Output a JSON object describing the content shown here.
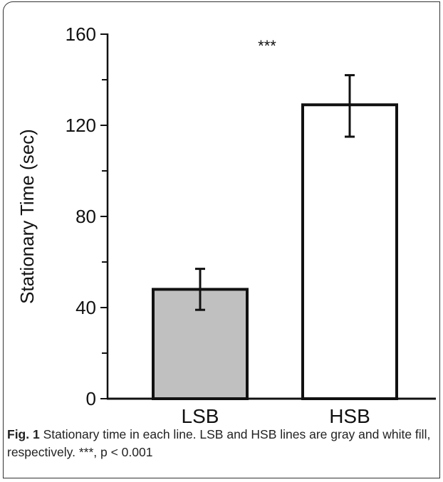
{
  "chart_data": {
    "type": "bar",
    "title": "",
    "xlabel": "",
    "ylabel": "Stationary Time (sec)",
    "ylim": [
      0,
      160
    ],
    "yticks_labeled": [
      0,
      40,
      80,
      120,
      160
    ],
    "yticks_minor": [
      20,
      60,
      100,
      140
    ],
    "categories": [
      "LSB",
      "HSB"
    ],
    "values": [
      48,
      129
    ],
    "error_lower": [
      39,
      115
    ],
    "error_upper": [
      57,
      142
    ],
    "bar_fills": [
      "#c0c0c0",
      "#ffffff"
    ],
    "bar_stroke": "#111111",
    "significance_label": "***",
    "grid": false,
    "legend": "none"
  },
  "caption": {
    "fig_label": "Fig. 1",
    "text": " Stationary time in each line. LSB and HSB lines are gray and white fill, respectively. ***, p < 0.001"
  }
}
